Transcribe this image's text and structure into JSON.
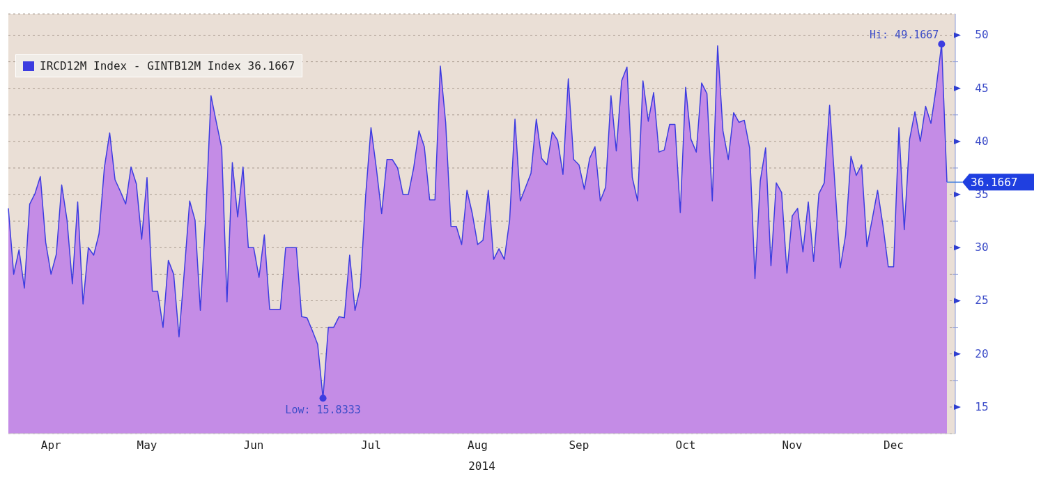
{
  "chart_data": {
    "type": "area",
    "xlabel": "2014",
    "categories": [
      null,
      null,
      null,
      null,
      null,
      null,
      null,
      null,
      "Apr",
      null,
      null,
      null,
      null,
      null,
      null,
      null,
      null,
      null,
      null,
      null,
      null,
      null,
      null,
      null,
      null,
      null,
      "May",
      null,
      null,
      null,
      null,
      null,
      null,
      null,
      null,
      null,
      null,
      null,
      null,
      null,
      null,
      null,
      null,
      null,
      null,
      null,
      "Jun",
      null,
      null,
      null,
      null,
      null,
      null,
      null,
      null,
      null,
      null,
      null,
      null,
      null,
      null,
      null,
      null,
      null,
      null,
      null,
      null,
      null,
      "Jul",
      null,
      null,
      null,
      null,
      null,
      null,
      null,
      null,
      null,
      null,
      null,
      null,
      null,
      null,
      null,
      null,
      null,
      null,
      null,
      "Aug",
      null,
      null,
      null,
      null,
      null,
      null,
      null,
      null,
      null,
      null,
      null,
      null,
      null,
      null,
      null,
      null,
      null,
      null,
      "Sep",
      null,
      null,
      null,
      null,
      null,
      null,
      null,
      null,
      null,
      null,
      null,
      null,
      null,
      null,
      null,
      null,
      null,
      null,
      null,
      "Oct",
      null,
      null,
      null,
      null,
      null,
      null,
      null,
      null,
      null,
      null,
      null,
      null,
      null,
      null,
      null,
      null,
      null,
      null,
      null,
      "Nov",
      null,
      null,
      null,
      null,
      null,
      null,
      null,
      null,
      null,
      null,
      null,
      null,
      null,
      null,
      null,
      null,
      null,
      null,
      "Dec",
      null,
      null,
      null,
      null,
      null,
      null,
      null,
      null,
      null,
      null
    ],
    "series": [
      {
        "name": "IRCD12M Index - GINTB12M Index 36.1667",
        "color": "#3c3ce0",
        "values": [
          33.7,
          27.5,
          29.8,
          26.2,
          34.1,
          35.1,
          36.7,
          30.5,
          27.5,
          29.4,
          35.9,
          32.6,
          26.6,
          34.3,
          24.7,
          30.0,
          29.3,
          31.3,
          37.5,
          40.8,
          36.4,
          35.3,
          34.1,
          37.6,
          36.0,
          30.8,
          36.6,
          25.9,
          25.9,
          22.5,
          28.8,
          27.5,
          21.6,
          27.8,
          34.4,
          32.6,
          24.1,
          32.9,
          44.3,
          41.8,
          39.4,
          24.9,
          38.0,
          32.9,
          37.6,
          30.0,
          30.0,
          27.2,
          31.2,
          24.2,
          24.2,
          24.2,
          30.0,
          30.0,
          30.0,
          23.5,
          23.4,
          22.2,
          20.9,
          15.8333,
          22.5,
          22.5,
          23.5,
          23.4,
          29.3,
          24.1,
          26.3,
          34.9,
          41.3,
          37.5,
          33.2,
          38.3,
          38.3,
          37.5,
          35.0,
          35.0,
          37.5,
          41.0,
          39.5,
          34.5,
          34.5,
          47.1,
          41.8,
          32.0,
          32.0,
          30.3,
          35.4,
          33.2,
          30.3,
          30.7,
          35.4,
          28.9,
          29.9,
          28.9,
          32.6,
          42.1,
          34.4,
          35.7,
          37.0,
          42.1,
          38.4,
          37.8,
          40.9,
          40.1,
          36.9,
          45.9,
          38.3,
          37.8,
          35.5,
          38.4,
          39.5,
          34.4,
          35.7,
          44.3,
          39.1,
          45.7,
          47.0,
          36.6,
          34.4,
          45.7,
          41.9,
          44.6,
          39.0,
          39.2,
          41.6,
          41.6,
          33.3,
          45.1,
          40.2,
          39.0,
          45.5,
          44.5,
          34.4,
          49.0,
          41.0,
          38.3,
          42.7,
          41.8,
          42.0,
          39.4,
          27.1,
          36.3,
          39.4,
          28.3,
          36.1,
          35.2,
          27.6,
          33.0,
          33.7,
          29.6,
          34.3,
          28.7,
          35.1,
          36.1,
          43.4,
          35.9,
          28.1,
          31.2,
          38.6,
          36.8,
          37.8,
          30.1,
          32.7,
          35.4,
          32.1,
          28.2,
          28.2,
          41.3,
          31.7,
          40.2,
          42.8,
          40.0,
          43.3,
          41.7,
          45.1,
          49.1667,
          36.1667
        ]
      }
    ],
    "ylim": [
      12.5,
      52
    ],
    "yticks": [
      15,
      {
        "value": 17.5,
        "label": null
      },
      20,
      {
        "value": 22.5,
        "label": null
      },
      25,
      {
        "value": 27.5,
        "label": null
      },
      30,
      {
        "value": 32.5,
        "label": null
      },
      35,
      {
        "value": 37.5,
        "label": null
      },
      40,
      {
        "value": 42.5,
        "label": null
      },
      45,
      {
        "value": 47.5,
        "label": null
      },
      50
    ],
    "grid": "y",
    "legend": "top left",
    "line_style": "solid",
    "ref_lines": [
      {
        "axis": "y",
        "value": 36.1667,
        "label": "36.1667"
      }
    ],
    "annotations": [
      "Hi: 49.1667",
      "Low: 15.8333"
    ]
  }
}
